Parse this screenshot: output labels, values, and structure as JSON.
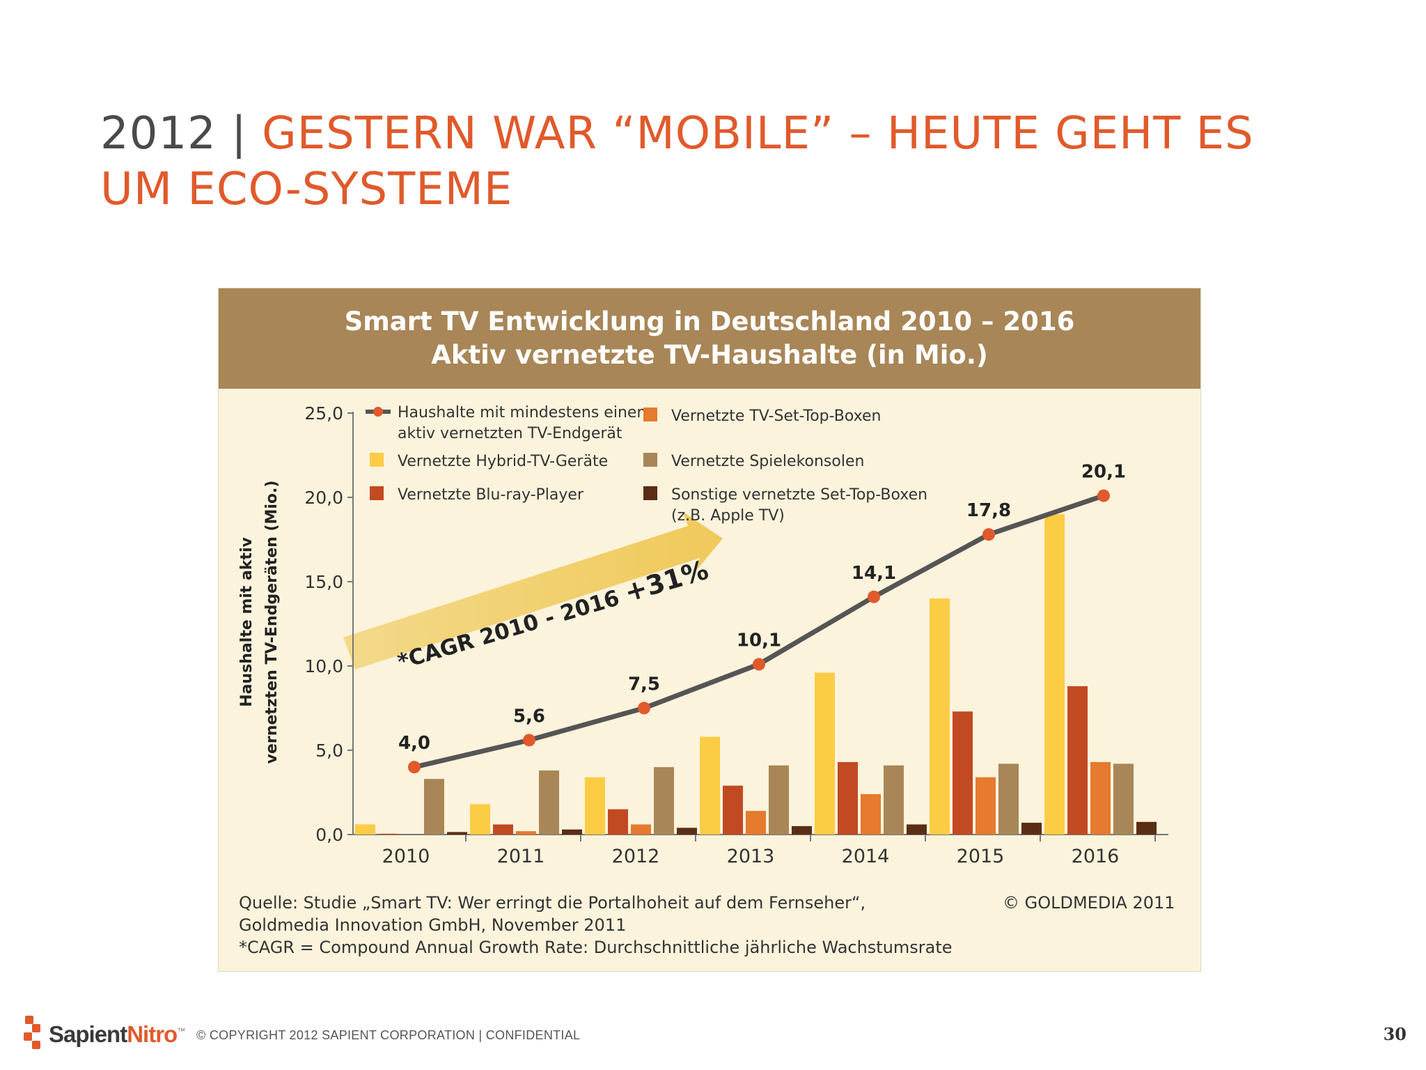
{
  "slide": {
    "title_year": "2012",
    "title_separator": "|",
    "title_line": "GESTERN WAR “MOBILE” – HEUTE GEHT ES UM ECO-SYSTEME"
  },
  "chart_data": {
    "type": "bar",
    "title": "Smart TV Entwicklung in Deutschland 2010 – 2016",
    "subtitle": "Aktiv vernetzte TV-Haushalte (in Mio.)",
    "ylabel_line1": "Haushalte mit aktiv",
    "ylabel_line2": "vernetzten TV-Endgeräten (Mio.)",
    "ylim": [
      0,
      25
    ],
    "yticks": [
      {
        "value": 0,
        "label": "0,0"
      },
      {
        "value": 5,
        "label": "5,0"
      },
      {
        "value": 10,
        "label": "10,0"
      },
      {
        "value": 15,
        "label": "15,0"
      },
      {
        "value": 20,
        "label": "20,0"
      },
      {
        "value": 25,
        "label": "25,0"
      }
    ],
    "categories": [
      "2010",
      "2011",
      "2012",
      "2013",
      "2014",
      "2015",
      "2016"
    ],
    "series": [
      {
        "name": "Vernetzte Hybrid-TV-Geräte",
        "color": "#fccc44",
        "values": [
          0.6,
          1.8,
          3.4,
          5.8,
          9.6,
          14.0,
          19.0
        ]
      },
      {
        "name": "Vernetzte Blu-ray-Player",
        "color": "#c24a23",
        "values": [
          0.05,
          0.6,
          1.5,
          2.9,
          4.3,
          7.3,
          8.8
        ]
      },
      {
        "name": "Vernetzte TV-Set-Top-Boxen",
        "color": "#e67a2e",
        "values": [
          0.0,
          0.2,
          0.6,
          1.4,
          2.4,
          3.4,
          4.3
        ]
      },
      {
        "name": "Vernetzte Spielekonsolen",
        "color": "#a88657",
        "values": [
          3.3,
          3.8,
          4.0,
          4.1,
          4.1,
          4.2,
          4.2
        ]
      },
      {
        "name": "Sonstige vernetzte Set-Top-Boxen",
        "name_line2": "(z.B. Apple TV)",
        "color": "#5a2e14",
        "values": [
          0.15,
          0.3,
          0.4,
          0.5,
          0.6,
          0.7,
          0.75
        ]
      }
    ],
    "line_series": {
      "name": "Haushalte mit mindestens einem",
      "name_line2": "aktiv vernetzten TV-Endgerät",
      "line_color": "#555555",
      "marker_color": "#e05a2b",
      "values": [
        4.0,
        5.6,
        7.5,
        10.1,
        14.1,
        17.8,
        20.1
      ],
      "labels": [
        "4,0",
        "5,6",
        "7,5",
        "10,1",
        "14,1",
        "17,8",
        "20,1"
      ]
    },
    "annotation": {
      "text_main": "*CAGR 2010 - 2016 ",
      "text_strong": "+31%"
    },
    "legend_position": "top-left"
  },
  "source": {
    "line1": "Quelle: Studie „Smart TV: Wer erringt die Portalhoheit auf dem Fernseher“,",
    "line2": "Goldmedia Innovation GmbH, November 2011",
    "line3": "*CAGR = Compound Annual Growth Rate: Durchschnittliche jährliche Wachstumsrate",
    "copyright": "© GOLDMEDIA 2011"
  },
  "footer": {
    "logo_part1": "Sapient",
    "logo_part2": "Nitro",
    "logo_tm": "™",
    "copyright": "© COPYRIGHT 2012 SAPIENT CORPORATION   |   CONFIDENTIAL",
    "page_number": "30"
  }
}
